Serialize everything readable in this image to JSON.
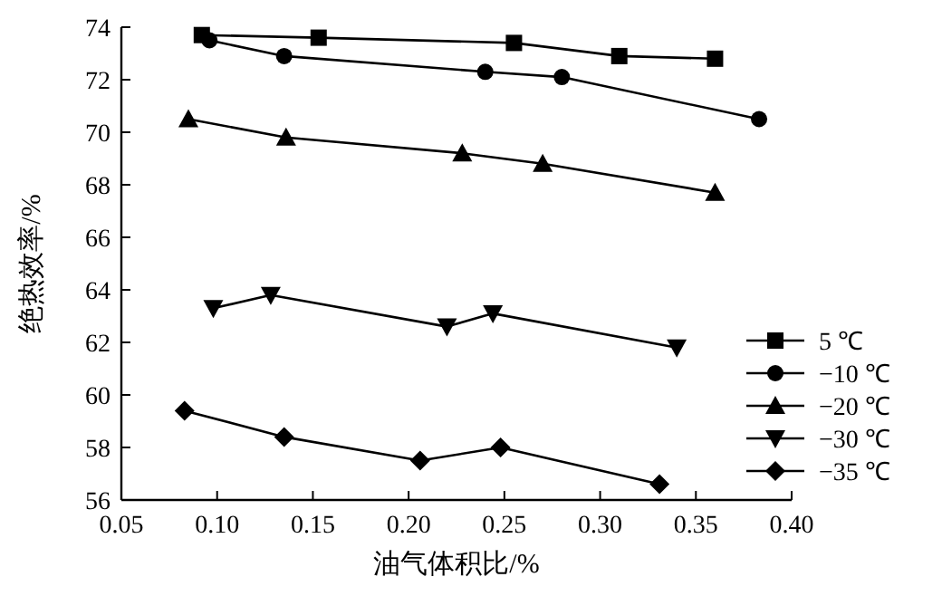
{
  "chart_data": {
    "type": "line",
    "xlabel": "油气体积比/%",
    "ylabel": "绝热效率/%",
    "xlim": [
      0.05,
      0.4
    ],
    "ylim": [
      56,
      74
    ],
    "xticks": [
      {
        "value": 0.05,
        "label": "0.05"
      },
      {
        "value": 0.1,
        "label": "0.10"
      },
      {
        "value": 0.15,
        "label": "0.15"
      },
      {
        "value": 0.2,
        "label": "0.20"
      },
      {
        "value": 0.25,
        "label": "0.25"
      },
      {
        "value": 0.3,
        "label": "0.30"
      },
      {
        "value": 0.35,
        "label": "0.35"
      },
      {
        "value": 0.4,
        "label": "0.40"
      }
    ],
    "yticks": [
      56,
      58,
      60,
      62,
      64,
      66,
      68,
      70,
      72,
      74
    ],
    "grid": false,
    "legend": "bottom right",
    "line_style": "solid",
    "series": [
      {
        "name": "5 ℃",
        "color": "#000000",
        "marker": "square",
        "x": [
          0.092,
          0.153,
          0.255,
          0.31,
          0.36
        ],
        "values": [
          73.7,
          73.6,
          73.4,
          72.9,
          72.8
        ]
      },
      {
        "name": "−10 ℃",
        "color": "#000000",
        "marker": "circle",
        "x": [
          0.096,
          0.135,
          0.24,
          0.28,
          0.383
        ],
        "values": [
          73.5,
          72.9,
          72.3,
          72.1,
          70.5
        ]
      },
      {
        "name": "−20 ℃",
        "color": "#000000",
        "marker": "triangle",
        "x": [
          0.085,
          0.136,
          0.228,
          0.27,
          0.36
        ],
        "values": [
          70.5,
          69.8,
          69.2,
          68.8,
          67.7
        ]
      },
      {
        "name": "−30 ℃",
        "color": "#000000",
        "marker": "triangle-down",
        "x": [
          0.098,
          0.128,
          0.22,
          0.244,
          0.34
        ],
        "values": [
          63.3,
          63.8,
          62.6,
          63.1,
          61.8
        ]
      },
      {
        "name": "−35 ℃",
        "color": "#000000",
        "marker": "diamond",
        "x": [
          0.083,
          0.135,
          0.206,
          0.248,
          0.331
        ],
        "values": [
          59.4,
          58.4,
          57.5,
          58.0,
          56.6
        ]
      }
    ]
  }
}
